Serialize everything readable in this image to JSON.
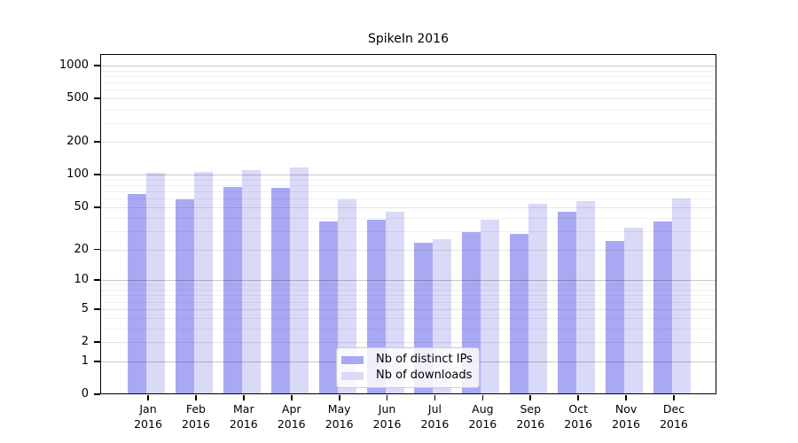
{
  "chart_data": {
    "type": "bar",
    "title": "SpikeIn 2016",
    "categories": [
      "Jan 2016",
      "Feb 2016",
      "Mar 2016",
      "Apr 2016",
      "May 2016",
      "Jun 2016",
      "Jul 2016",
      "Aug 2016",
      "Sep 2016",
      "Oct 2016",
      "Nov 2016",
      "Dec 2016"
    ],
    "series": [
      {
        "name": "Nb of distinct IPs",
        "color": "#a9a9f3",
        "values": [
          66,
          59,
          77,
          76,
          37,
          38,
          23,
          29,
          28,
          45,
          24,
          37
        ]
      },
      {
        "name": "Nb of downloads",
        "color": "#d9d9f8",
        "values": [
          104,
          106,
          111,
          116,
          59,
          45,
          25,
          38,
          54,
          57,
          32,
          60
        ]
      }
    ],
    "yscale": "log10(value+1)",
    "ylim": [
      0,
      1100
    ],
    "yticks": [
      0,
      1,
      2,
      5,
      10,
      20,
      50,
      100,
      200,
      500,
      1000
    ],
    "grid": "horizontal major and minor gridlines",
    "legend_position": "lower center inside plot",
    "xlabel": "",
    "ylabel": ""
  }
}
